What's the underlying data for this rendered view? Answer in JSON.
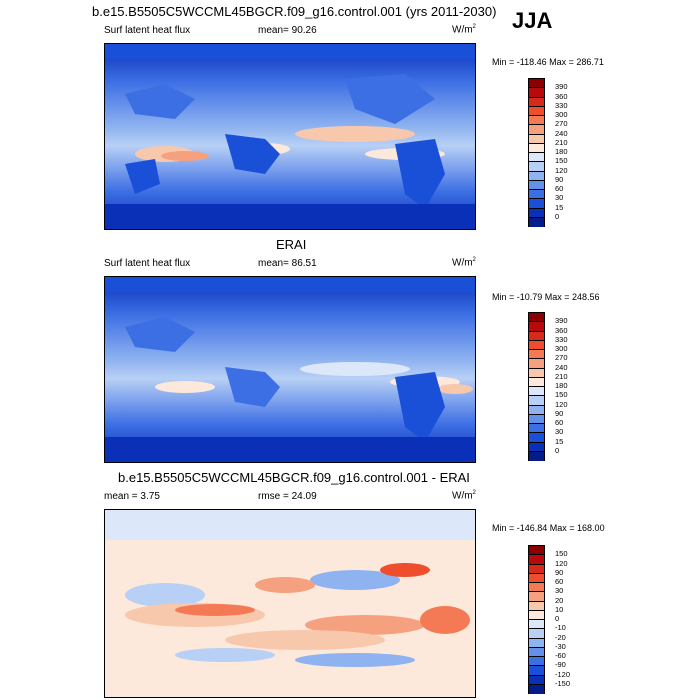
{
  "header": {
    "title": "b.e15.B5505C5WCCML45BGCR.f09_g16.control.001 (yrs 2011-2030)",
    "season": "JJA"
  },
  "panels": [
    {
      "id": "model",
      "subtitle": "",
      "left_label": "Surf latent heat flux",
      "center_label": "mean=  90.26",
      "units": "W/m",
      "units_sup": "2",
      "minmax": "Min = -118.46 Max = 286.71",
      "scale": "abs"
    },
    {
      "id": "obs",
      "subtitle": "ERAI",
      "left_label": "Surf latent heat flux",
      "center_label": "mean=  86.51",
      "units": "W/m",
      "units_sup": "2",
      "minmax": "Min = -10.79 Max = 248.56",
      "scale": "abs"
    },
    {
      "id": "diff",
      "subtitle": "b.e15.B5505C5WCCML45BGCR.f09_g16.control.001 - ERAI",
      "left_label": "mean =   3.75",
      "center_label": "rmse =  24.09",
      "units": "W/m",
      "units_sup": "2",
      "minmax": "Min = -146.84 Max = 168.00",
      "scale": "diff"
    }
  ],
  "colorbars": {
    "abs": {
      "labels": [
        "390",
        "360",
        "330",
        "300",
        "270",
        "240",
        "210",
        "180",
        "150",
        "120",
        "90",
        "60",
        "30",
        "15",
        "0"
      ],
      "colors": [
        "#8a0000",
        "#b80a0a",
        "#d82a1a",
        "#ee4e2e",
        "#f47a56",
        "#f5a07f",
        "#f8c8ad",
        "#fce9dc",
        "#dce8f9",
        "#b8d0f5",
        "#8fb3f0",
        "#6490ea",
        "#3c6ee4",
        "#1a4fd8",
        "#0a30b8",
        "#031c8a"
      ]
    },
    "diff": {
      "labels": [
        "150",
        "120",
        "90",
        "60",
        "30",
        "20",
        "10",
        "0",
        "-10",
        "-20",
        "-30",
        "-60",
        "-90",
        "-120",
        "-150"
      ],
      "colors": [
        "#8a0000",
        "#b80a0a",
        "#d82a1a",
        "#ee4e2e",
        "#f47a56",
        "#f5a07f",
        "#f8c8ad",
        "#fce9dc",
        "#dce8f9",
        "#b8d0f5",
        "#8fb3f0",
        "#6490ea",
        "#3c6ee4",
        "#1a4fd8",
        "#0a30b8",
        "#031c8a"
      ]
    }
  }
}
